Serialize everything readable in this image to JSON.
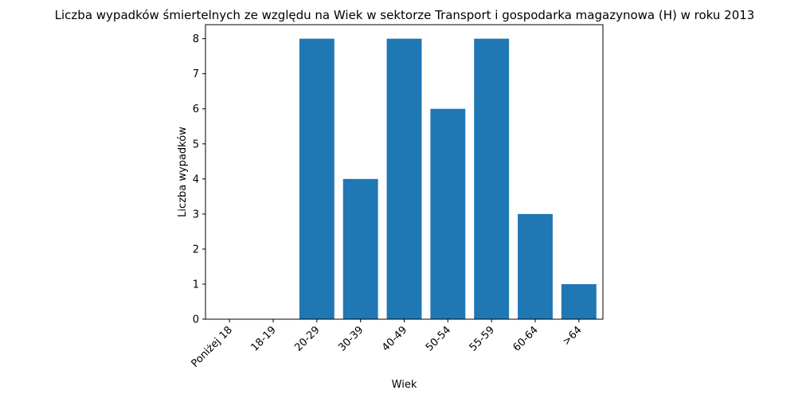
{
  "chart_data": {
    "type": "bar",
    "title": "Liczba wypadków śmiertelnych ze względu na Wiek w sektorze Transport i gospodarka magazynowa  (H)   w roku 2013",
    "xlabel": "Wiek",
    "ylabel": "Liczba wypadków",
    "categories": [
      "Poniżej 18",
      "18-19",
      "20-29",
      "30-39",
      "40-49",
      "50-54",
      "55-59",
      "60-64",
      ">64"
    ],
    "values": [
      0,
      0,
      8,
      4,
      8,
      6,
      8,
      3,
      1
    ],
    "ylim": [
      0,
      8.4
    ],
    "yticks": [
      0,
      1,
      2,
      3,
      4,
      5,
      6,
      7,
      8
    ],
    "bar_color": "#1f77b4",
    "grid": false,
    "legend": "none"
  }
}
